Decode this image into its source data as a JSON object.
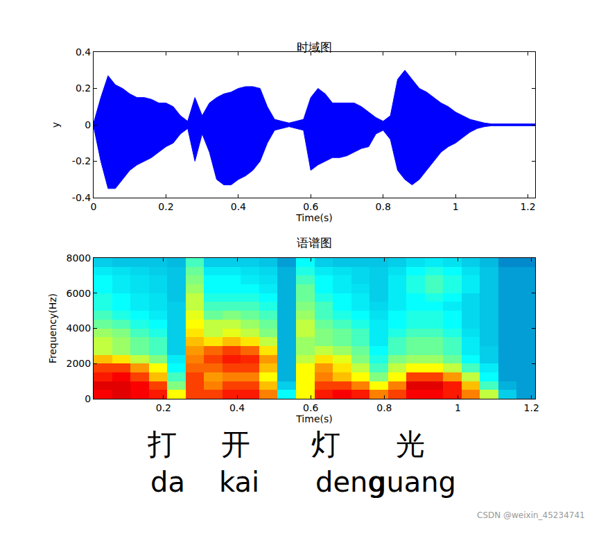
{
  "chart_data": [
    {
      "type": "band",
      "title": "时域图",
      "x_label": "Time(s)",
      "y_label": "y",
      "color": "#0000ff",
      "x": [
        0,
        0.02,
        0.04,
        0.06,
        0.08,
        0.1,
        0.12,
        0.14,
        0.16,
        0.18,
        0.2,
        0.22,
        0.24,
        0.26,
        0.28,
        0.3,
        0.32,
        0.34,
        0.36,
        0.38,
        0.4,
        0.42,
        0.44,
        0.46,
        0.48,
        0.5,
        0.52,
        0.54,
        0.56,
        0.58,
        0.6,
        0.62,
        0.64,
        0.66,
        0.68,
        0.7,
        0.72,
        0.74,
        0.76,
        0.78,
        0.8,
        0.82,
        0.84,
        0.86,
        0.88,
        0.9,
        0.92,
        0.94,
        0.96,
        0.98,
        1.0,
        1.02,
        1.04,
        1.06,
        1.08,
        1.1,
        1.12,
        1.14,
        1.16,
        1.18,
        1.2,
        1.22
      ],
      "upper": [
        0.01,
        0.15,
        0.27,
        0.22,
        0.2,
        0.17,
        0.15,
        0.15,
        0.14,
        0.12,
        0.12,
        0.1,
        0.05,
        0.02,
        0.15,
        0.05,
        0.12,
        0.15,
        0.17,
        0.18,
        0.2,
        0.21,
        0.21,
        0.2,
        0.1,
        0.03,
        0.02,
        0.01,
        0.02,
        0.03,
        0.15,
        0.2,
        0.17,
        0.12,
        0.12,
        0.12,
        0.12,
        0.1,
        0.07,
        0.04,
        0.02,
        0.05,
        0.25,
        0.3,
        0.25,
        0.2,
        0.18,
        0.15,
        0.12,
        0.1,
        0.07,
        0.05,
        0.03,
        0.02,
        0.01,
        0.005,
        0.005,
        0.005,
        0.005,
        0.005,
        0.005,
        0.005
      ],
      "lower": [
        -0.01,
        -0.2,
        -0.35,
        -0.35,
        -0.3,
        -0.25,
        -0.22,
        -0.2,
        -0.18,
        -0.15,
        -0.12,
        -0.1,
        -0.05,
        -0.02,
        -0.2,
        -0.05,
        -0.15,
        -0.3,
        -0.33,
        -0.33,
        -0.3,
        -0.28,
        -0.25,
        -0.2,
        -0.1,
        -0.03,
        -0.02,
        -0.01,
        -0.02,
        -0.03,
        -0.25,
        -0.22,
        -0.2,
        -0.18,
        -0.18,
        -0.17,
        -0.15,
        -0.13,
        -0.12,
        -0.05,
        -0.03,
        -0.08,
        -0.25,
        -0.3,
        -0.33,
        -0.3,
        -0.25,
        -0.2,
        -0.15,
        -0.12,
        -0.1,
        -0.07,
        -0.04,
        -0.02,
        -0.01,
        -0.005,
        -0.005,
        -0.005,
        -0.005,
        -0.005,
        -0.005,
        -0.005
      ],
      "xlim": [
        0,
        1.22
      ],
      "xticks": [
        0,
        0.2,
        0.4,
        0.6,
        0.8,
        1,
        1.2
      ],
      "ylim": [
        -0.4,
        0.4
      ],
      "yticks": [
        -0.4,
        -0.2,
        0,
        0.2,
        0.4
      ]
    },
    {
      "type": "heatmap",
      "title": "语谱图",
      "x_label": "Time(s)",
      "y_label": "Frequency(Hz)",
      "x": [
        0.035,
        0.085,
        0.135,
        0.185,
        0.235,
        0.285,
        0.335,
        0.385,
        0.435,
        0.485,
        0.535,
        0.585,
        0.635,
        0.685,
        0.735,
        0.785,
        0.835,
        0.885,
        0.935,
        0.985,
        1.035,
        1.085,
        1.135,
        1.185
      ],
      "y": [
        250,
        750,
        1250,
        1750,
        2250,
        2750,
        3250,
        3750,
        4250,
        4750,
        5250,
        5750,
        6250,
        6750,
        7250,
        7750
      ],
      "z": [
        [
          90,
          92,
          90,
          88,
          70,
          85,
          85,
          88,
          88,
          80,
          50,
          70,
          88,
          90,
          88,
          80,
          85,
          90,
          90,
          88,
          80,
          65,
          45,
          40
        ],
        [
          92,
          92,
          90,
          85,
          60,
          85,
          80,
          85,
          85,
          75,
          45,
          70,
          85,
          85,
          80,
          70,
          80,
          92,
          92,
          88,
          75,
          55,
          42,
          40
        ],
        [
          88,
          90,
          85,
          75,
          55,
          85,
          78,
          80,
          80,
          70,
          42,
          70,
          80,
          75,
          70,
          60,
          70,
          85,
          85,
          78,
          65,
          50,
          40,
          40
        ],
        [
          85,
          85,
          78,
          70,
          50,
          82,
          82,
          85,
          85,
          75,
          42,
          70,
          78,
          72,
          65,
          55,
          65,
          70,
          70,
          65,
          55,
          48,
          40,
          40
        ],
        [
          75,
          72,
          65,
          60,
          48,
          80,
          85,
          88,
          87,
          78,
          42,
          65,
          72,
          68,
          60,
          52,
          60,
          62,
          62,
          58,
          50,
          45,
          40,
          40
        ],
        [
          65,
          62,
          58,
          55,
          45,
          78,
          82,
          85,
          82,
          72,
          42,
          62,
          65,
          62,
          58,
          50,
          55,
          58,
          58,
          55,
          48,
          45,
          40,
          40
        ],
        [
          65,
          62,
          58,
          55,
          45,
          75,
          72,
          75,
          72,
          65,
          42,
          62,
          60,
          58,
          55,
          48,
          55,
          58,
          58,
          55,
          48,
          44,
          40,
          40
        ],
        [
          62,
          60,
          55,
          52,
          45,
          72,
          65,
          68,
          65,
          60,
          42,
          65,
          60,
          58,
          55,
          48,
          52,
          55,
          55,
          52,
          47,
          44,
          40,
          40
        ],
        [
          58,
          56,
          52,
          50,
          45,
          70,
          65,
          65,
          62,
          58,
          42,
          65,
          58,
          55,
          52,
          48,
          50,
          52,
          52,
          50,
          46,
          44,
          40,
          40
        ],
        [
          55,
          52,
          50,
          48,
          45,
          68,
          58,
          60,
          58,
          55,
          42,
          62,
          55,
          52,
          50,
          47,
          50,
          52,
          52,
          50,
          46,
          44,
          40,
          40
        ],
        [
          52,
          50,
          48,
          47,
          45,
          65,
          55,
          55,
          55,
          52,
          42,
          60,
          55,
          50,
          48,
          46,
          48,
          50,
          50,
          48,
          46,
          44,
          40,
          40
        ],
        [
          52,
          50,
          48,
          47,
          44,
          65,
          52,
          52,
          52,
          50,
          42,
          58,
          52,
          50,
          48,
          45,
          48,
          50,
          52,
          50,
          46,
          44,
          40,
          40
        ],
        [
          50,
          48,
          47,
          46,
          44,
          62,
          50,
          50,
          50,
          48,
          42,
          58,
          50,
          48,
          47,
          45,
          48,
          52,
          55,
          52,
          48,
          44,
          40,
          40
        ],
        [
          50,
          48,
          47,
          46,
          44,
          60,
          50,
          50,
          48,
          47,
          42,
          55,
          50,
          48,
          46,
          45,
          48,
          52,
          55,
          52,
          48,
          44,
          40,
          40
        ],
        [
          48,
          47,
          46,
          45,
          44,
          58,
          48,
          48,
          47,
          46,
          42,
          52,
          48,
          47,
          46,
          45,
          47,
          50,
          52,
          50,
          47,
          44,
          40,
          40
        ],
        [
          45,
          44,
          44,
          44,
          43,
          55,
          45,
          45,
          45,
          44,
          40,
          50,
          45,
          44,
          44,
          44,
          45,
          47,
          48,
          47,
          45,
          43,
          38,
          38
        ]
      ],
      "zlim": [
        20,
        100
      ],
      "xlim": [
        0.01,
        1.21
      ],
      "xticks": [
        0.2,
        0.4,
        0.6,
        0.8,
        1,
        1.2
      ],
      "ylim": [
        0,
        8000
      ],
      "yticks": [
        0,
        2000,
        4000,
        6000,
        8000
      ]
    }
  ],
  "captions": [
    {
      "hanzi": "打",
      "pinyin": "da"
    },
    {
      "hanzi": "开",
      "pinyin": "kai"
    },
    {
      "hanzi": "灯",
      "pinyin": "deng"
    },
    {
      "hanzi": "光",
      "pinyin": "guang"
    }
  ],
  "watermark": "CSDN @weixin_45234741"
}
